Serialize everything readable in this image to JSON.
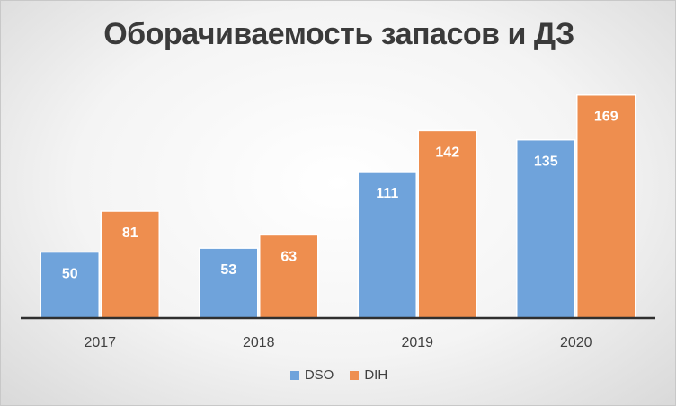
{
  "chart_data": {
    "type": "bar",
    "title": "Оборачиваемость запасов и ДЗ",
    "categories": [
      "2017",
      "2018",
      "2019",
      "2020"
    ],
    "series": [
      {
        "name": "DSO",
        "values": [
          50,
          53,
          111,
          135
        ],
        "color": "#6fa3db"
      },
      {
        "name": "DIH",
        "values": [
          81,
          63,
          142,
          169
        ],
        "color": "#ee8e4f"
      }
    ],
    "xlabel": "",
    "ylabel": "",
    "ylim": [
      0,
      180
    ],
    "grid": false,
    "legend_position": "bottom"
  }
}
